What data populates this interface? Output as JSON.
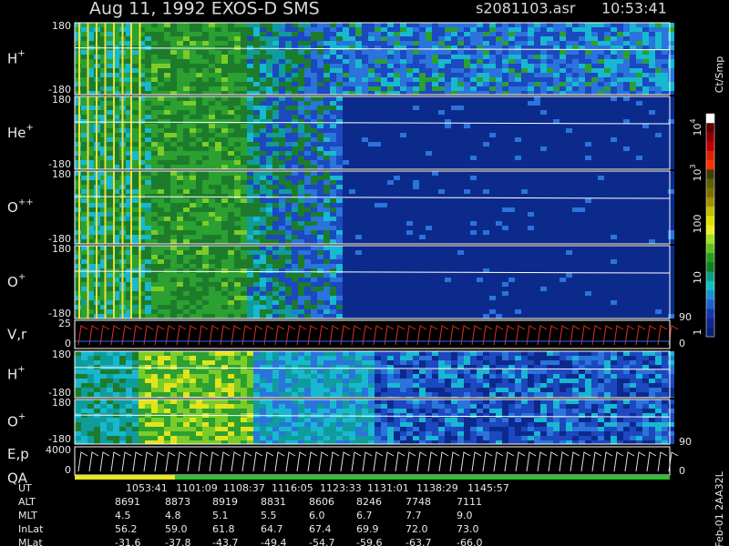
{
  "header": {
    "title": "Aug 11, 1992   EXOS-D SMS",
    "file": "s2081103.asr",
    "time": "10:53:41"
  },
  "panels": [
    {
      "label": {
        "base": "H",
        "sup": "+"
      },
      "ticks": [
        "180",
        "-180"
      ]
    },
    {
      "label": {
        "base": "He",
        "sup": "+"
      },
      "ticks": [
        "180",
        "-180"
      ]
    },
    {
      "label": {
        "base": "O",
        "sup": "++"
      },
      "ticks": [
        "180",
        "-180"
      ]
    },
    {
      "label": {
        "base": "O",
        "sup": "+"
      },
      "ticks": [
        "180",
        "-180"
      ]
    },
    {
      "label": {
        "base": "V,r",
        "sup": ""
      },
      "ticks": [
        "25",
        "0"
      ]
    },
    {
      "label": {
        "base": "H",
        "sup": "+"
      },
      "ticks": [
        "180",
        "-180"
      ]
    },
    {
      "label": {
        "base": "O",
        "sup": "+"
      },
      "ticks": [
        "180",
        "-180"
      ]
    },
    {
      "label": {
        "base": "E,p",
        "sup": ""
      },
      "label2": "QA",
      "ticks": [
        "4000",
        "0"
      ]
    }
  ],
  "right_axis": [
    [
      "90",
      "0"
    ],
    [
      "90",
      "0"
    ]
  ],
  "colorbar": {
    "label": "Ct/Smp",
    "ticks": [
      {
        "base": "10",
        "sup": "4"
      },
      {
        "base": "10",
        "sup": "3"
      },
      {
        "base": "100",
        "sup": ""
      },
      {
        "base": "10",
        "sup": ""
      },
      {
        "base": "1",
        "sup": ""
      }
    ]
  },
  "footer": {
    "rows": [
      [
        "UT",
        "1053:41",
        "1101:09",
        "1108:37",
        "1116:05",
        "1123:33",
        "1131:01",
        "1138:29",
        "1145:57"
      ],
      [
        "ALT",
        "8691",
        "8873",
        "8919",
        "8831",
        "8606",
        "8246",
        "7748",
        "7111"
      ],
      [
        "MLT",
        "4.5",
        "4.8",
        "5.1",
        "5.5",
        "6.0",
        "6.7",
        "7.7",
        "9.0"
      ],
      [
        "InLat",
        "56.2",
        "59.0",
        "61.8",
        "64.7",
        "67.4",
        "69.9",
        "72.0",
        "73.0"
      ],
      [
        "MLat",
        "-31.6",
        "-37.8",
        "-43.7",
        "-49.4",
        "-54.7",
        "-59.6",
        "-63.7",
        "-66.0"
      ]
    ]
  },
  "side_note": "Feb-01 2AA32L"
}
